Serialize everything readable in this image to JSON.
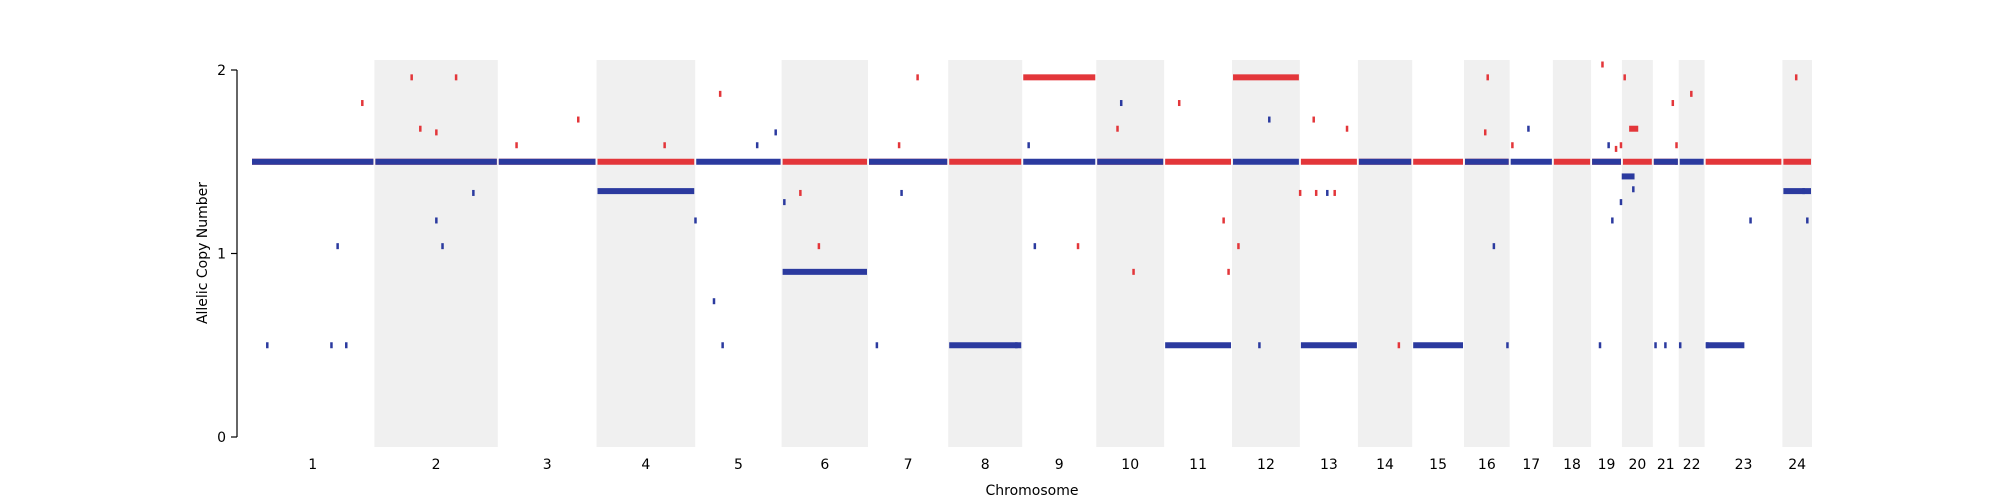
{
  "chart_data": {
    "type": "scatter",
    "title": "",
    "xlabel": "Chromosome",
    "ylabel": "Allelic Copy Number",
    "ylim": [
      0,
      2
    ],
    "yticks": [
      0,
      1,
      2
    ],
    "grid": false,
    "colors": {
      "major": "#e3363a",
      "minor": "#2b3a9f",
      "band": "#f0f0f0"
    },
    "chromosomes": [
      {
        "label": "1",
        "x": [
          0.0,
          1.0
        ]
      },
      {
        "label": "2",
        "x": [
          1.0,
          2.0
        ]
      },
      {
        "label": "3",
        "x": [
          2.0,
          2.8
        ]
      },
      {
        "label": "4",
        "x": [
          2.8,
          3.6
        ]
      },
      {
        "label": "5",
        "x": [
          3.6,
          4.3
        ]
      },
      {
        "label": "6",
        "x": [
          4.3,
          5.0
        ]
      },
      {
        "label": "7",
        "x": [
          5.0,
          5.65
        ]
      },
      {
        "label": "8",
        "x": [
          5.65,
          6.25
        ]
      },
      {
        "label": "9",
        "x": [
          6.25,
          6.85
        ]
      },
      {
        "label": "10",
        "x": [
          6.85,
          7.4
        ]
      },
      {
        "label": "11",
        "x": [
          7.4,
          7.95
        ]
      },
      {
        "label": "12",
        "x": [
          7.95,
          8.5
        ]
      },
      {
        "label": "13",
        "x": [
          8.5,
          8.97
        ]
      },
      {
        "label": "14",
        "x": [
          8.97,
          9.41
        ]
      },
      {
        "label": "15",
        "x": [
          9.41,
          9.83
        ]
      },
      {
        "label": "16",
        "x": [
          9.83,
          10.2
        ]
      },
      {
        "label": "17",
        "x": [
          10.2,
          10.55
        ]
      },
      {
        "label": "18",
        "x": [
          10.55,
          10.86
        ]
      },
      {
        "label": "19",
        "x": [
          10.86,
          11.11
        ]
      },
      {
        "label": "20",
        "x": [
          11.11,
          11.36
        ]
      },
      {
        "label": "21",
        "x": [
          11.36,
          11.57
        ]
      },
      {
        "label": "22",
        "x": [
          11.57,
          11.78
        ]
      },
      {
        "label": "23",
        "x": [
          11.78,
          12.41
        ]
      },
      {
        "label": "24",
        "x": [
          12.41,
          12.65
        ]
      }
    ],
    "series": [
      {
        "key": "major",
        "segments": [
          {
            "x": [
              0.0,
              1.0
            ],
            "y": 1.5
          },
          {
            "x": [
              1.0,
              2.0
            ],
            "y": 1.5
          },
          {
            "x": [
              2.0,
              2.8
            ],
            "y": 1.5
          },
          {
            "x": [
              2.8,
              3.6
            ],
            "y": 1.5
          },
          {
            "x": [
              4.3,
              5.0
            ],
            "y": 1.5
          },
          {
            "x": [
              5.0,
              5.65
            ],
            "y": 1.5
          },
          {
            "x": [
              5.65,
              6.25
            ],
            "y": 1.5
          },
          {
            "x": [
              6.25,
              6.85
            ],
            "y": 1.96
          },
          {
            "x": [
              6.85,
              7.4
            ],
            "y": 1.5
          },
          {
            "x": [
              7.4,
              7.95
            ],
            "y": 1.5
          },
          {
            "x": [
              7.95,
              8.5
            ],
            "y": 1.96
          },
          {
            "x": [
              8.5,
              8.97
            ],
            "y": 1.5
          },
          {
            "x": [
              8.97,
              9.41
            ],
            "y": 1.5
          },
          {
            "x": [
              9.41,
              9.83
            ],
            "y": 1.5
          },
          {
            "x": [
              9.83,
              10.2
            ],
            "y": 1.5
          },
          {
            "x": [
              10.55,
              10.86
            ],
            "y": 1.5
          },
          {
            "x": [
              10.86,
              11.11
            ],
            "y": 1.5
          },
          {
            "x": [
              11.11,
              11.36
            ],
            "y": 1.5
          },
          {
            "x": [
              11.16,
              11.25
            ],
            "y": 1.68
          },
          {
            "x": [
              11.36,
              11.57
            ],
            "y": 1.5
          },
          {
            "x": [
              11.78,
              12.41
            ],
            "y": 1.5
          },
          {
            "x": [
              12.41,
              12.65
            ],
            "y": 1.5
          }
        ],
        "points": [
          [
            0.9,
            1.82
          ],
          [
            1.3,
            1.96
          ],
          [
            1.37,
            1.68
          ],
          [
            1.5,
            1.66
          ],
          [
            1.66,
            1.96
          ],
          [
            2.15,
            1.59
          ],
          [
            2.65,
            1.73
          ],
          [
            3.35,
            1.59
          ],
          [
            3.8,
            1.87
          ],
          [
            4.45,
            1.33
          ],
          [
            4.6,
            1.04
          ],
          [
            5.25,
            1.59
          ],
          [
            5.4,
            1.96
          ],
          [
            6.7,
            1.04
          ],
          [
            7.02,
            1.68
          ],
          [
            7.52,
            1.82
          ],
          [
            7.15,
            0.9
          ],
          [
            7.88,
            1.18
          ],
          [
            7.92,
            0.9
          ],
          [
            8.0,
            1.04
          ],
          [
            8.61,
            1.73
          ],
          [
            8.63,
            1.33
          ],
          [
            8.78,
            1.33
          ],
          [
            8.88,
            1.68
          ],
          [
            10.02,
            1.96
          ],
          [
            10.0,
            1.66
          ],
          [
            10.22,
            1.59
          ],
          [
            10.95,
            2.03
          ],
          [
            11.06,
            1.57
          ],
          [
            11.1,
            1.59
          ],
          [
            11.13,
            1.96
          ],
          [
            11.52,
            1.82
          ],
          [
            11.55,
            1.59
          ],
          [
            11.67,
            1.87
          ],
          [
            12.52,
            1.96
          ],
          [
            9.3,
            0.5
          ],
          [
            8.5,
            1.33
          ]
        ]
      },
      {
        "key": "minor",
        "segments": [
          {
            "x": [
              0.0,
              1.0
            ],
            "y": 1.5
          },
          {
            "x": [
              1.0,
              2.0
            ],
            "y": 1.5
          },
          {
            "x": [
              2.0,
              2.8
            ],
            "y": 1.5
          },
          {
            "x": [
              2.8,
              3.6
            ],
            "y": 1.34
          },
          {
            "x": [
              3.6,
              4.3
            ],
            "y": 1.5
          },
          {
            "x": [
              4.3,
              5.0
            ],
            "y": 0.9
          },
          {
            "x": [
              5.0,
              5.65
            ],
            "y": 1.5
          },
          {
            "x": [
              5.65,
              6.25
            ],
            "y": 0.5
          },
          {
            "x": [
              6.25,
              6.85
            ],
            "y": 1.5
          },
          {
            "x": [
              6.85,
              7.4
            ],
            "y": 1.5
          },
          {
            "x": [
              7.4,
              7.95
            ],
            "y": 0.5
          },
          {
            "x": [
              7.95,
              8.5
            ],
            "y": 1.5
          },
          {
            "x": [
              8.5,
              8.97
            ],
            "y": 0.5
          },
          {
            "x": [
              8.97,
              9.41
            ],
            "y": 1.5
          },
          {
            "x": [
              9.41,
              9.83
            ],
            "y": 0.5
          },
          {
            "x": [
              9.83,
              10.2
            ],
            "y": 1.5
          },
          {
            "x": [
              10.2,
              10.55
            ],
            "y": 1.5
          },
          {
            "x": [
              10.86,
              11.11
            ],
            "y": 1.5
          },
          {
            "x": [
              11.1,
              11.22
            ],
            "y": 1.42
          },
          {
            "x": [
              11.36,
              11.57
            ],
            "y": 1.5
          },
          {
            "x": [
              11.57,
              11.78
            ],
            "y": 1.5
          },
          {
            "x": [
              11.78,
              12.11
            ],
            "y": 0.5
          },
          {
            "x": [
              12.41,
              12.65
            ],
            "y": 1.34
          }
        ],
        "points": [
          [
            0.13,
            0.5
          ],
          [
            0.65,
            0.5
          ],
          [
            0.77,
            0.5
          ],
          [
            0.7,
            1.04
          ],
          [
            1.5,
            1.18
          ],
          [
            1.55,
            1.04
          ],
          [
            1.8,
            1.33
          ],
          [
            3.6,
            1.18
          ],
          [
            3.75,
            0.74
          ],
          [
            3.82,
            0.5
          ],
          [
            4.1,
            1.59
          ],
          [
            4.25,
            1.66
          ],
          [
            4.32,
            1.28
          ],
          [
            5.07,
            0.5
          ],
          [
            5.27,
            1.33
          ],
          [
            6.3,
            1.59
          ],
          [
            6.35,
            1.04
          ],
          [
            6.2,
            0.5
          ],
          [
            7.05,
            1.82
          ],
          [
            8.25,
            1.73
          ],
          [
            8.17,
            0.5
          ],
          [
            8.72,
            1.33
          ],
          [
            10.07,
            1.04
          ],
          [
            10.18,
            0.5
          ],
          [
            10.35,
            1.68
          ],
          [
            11.0,
            1.59
          ],
          [
            11.03,
            1.18
          ],
          [
            11.1,
            1.28
          ],
          [
            11.2,
            1.35
          ],
          [
            10.93,
            0.5
          ],
          [
            11.38,
            0.5
          ],
          [
            11.46,
            0.5
          ],
          [
            11.58,
            0.5
          ],
          [
            11.8,
            0.5
          ],
          [
            12.15,
            1.18
          ],
          [
            12.61,
            1.18
          ],
          [
            12.58,
            1.34
          ],
          [
            11.55,
            1.5
          ]
        ]
      }
    ]
  }
}
